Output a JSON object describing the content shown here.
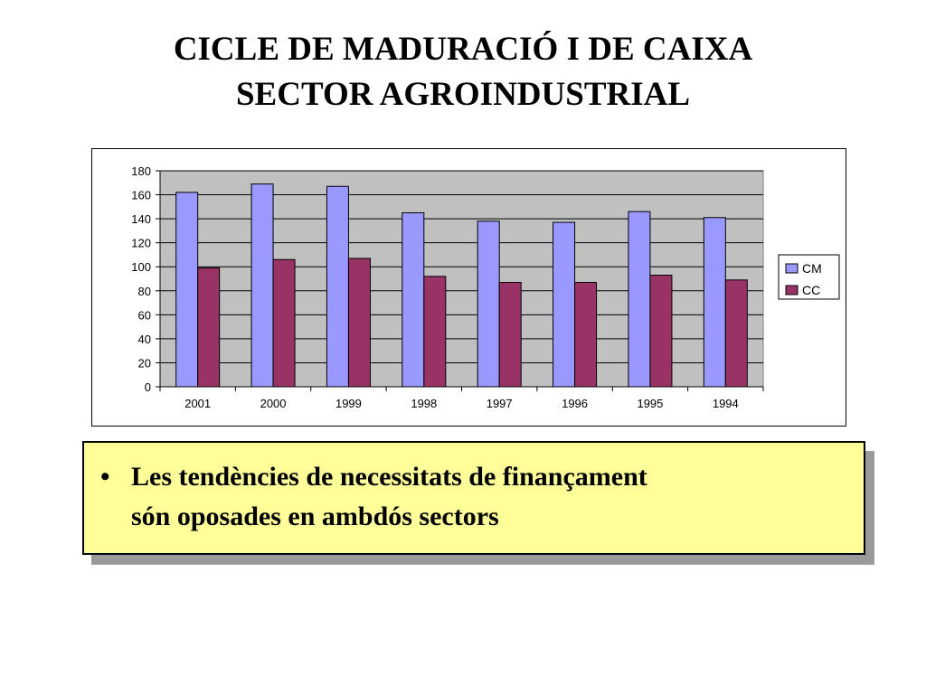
{
  "slide": {
    "title_line1": "CICLE DE MADURACIÓ I DE CAIXA",
    "title_line2": "SECTOR AGROINDUSTRIAL",
    "bullet_symbol": "•",
    "bullet_text_line1": "Les tendències de necessitats de finançament",
    "bullet_text_line2": "són oposades en ambdós sectors"
  },
  "chart_data": {
    "type": "bar",
    "categories": [
      "2001",
      "2000",
      "1999",
      "1998",
      "1997",
      "1996",
      "1995",
      "1994"
    ],
    "series": [
      {
        "name": "CM",
        "values": [
          162,
          169,
          167,
          145,
          138,
          137,
          146,
          141
        ],
        "color": "#9999ff"
      },
      {
        "name": "CC",
        "values": [
          99,
          106,
          107,
          92,
          87,
          87,
          93,
          89
        ],
        "color": "#993366"
      }
    ],
    "ylim": [
      0,
      180
    ],
    "yticks": [
      0,
      20,
      40,
      60,
      80,
      100,
      120,
      140,
      160,
      180
    ],
    "grid": true,
    "plot_background": "#c0c0c0",
    "legend_position": "right"
  }
}
